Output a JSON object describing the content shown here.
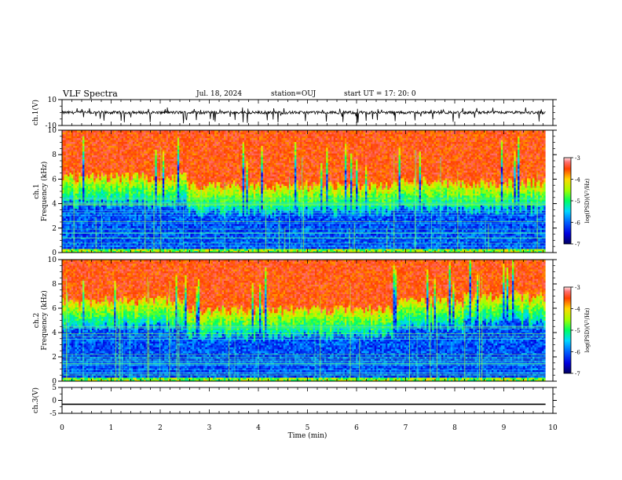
{
  "header": {
    "title": "VLF Spectra",
    "date": "Jul. 18, 2024",
    "station": "station=OUJ",
    "start_ut": "start UT =  17: 20: 0"
  },
  "chart_data": [
    {
      "type": "line",
      "panel": "ch1-waveform",
      "ylabel": "ch.1(V)",
      "ylim": [
        -10,
        10
      ],
      "yticks": [
        "10",
        "-10"
      ],
      "description_level": "noisy trace near 0 V with sparse negative spikes",
      "baseline": 0
    },
    {
      "type": "heatmap",
      "panel": "ch1-spectrogram",
      "ylabel_line1": "ch.1",
      "ylabel_line2": "Frequency (kHz)",
      "ylim": [
        0,
        10
      ],
      "yticks": [
        "0",
        "2",
        "4",
        "6",
        "8",
        "10"
      ],
      "colorbar": {
        "label": "log(PSD)(V²/Hz)",
        "range": [
          -7,
          -3
        ],
        "ticks": [
          "-3",
          "-4",
          "-5",
          "-6",
          "-7"
        ]
      },
      "low_band_top_khz": [
        4.0,
        3.3,
        3.6,
        3.5
      ],
      "segments_min": [
        0,
        2.55,
        6.85,
        8.2
      ]
    },
    {
      "type": "heatmap",
      "panel": "ch2-spectrogram",
      "ylabel_line1": "ch.2",
      "ylabel_line2": "Frequency (kHz)",
      "ylim": [
        0,
        10
      ],
      "yticks": [
        "0",
        "2",
        "4",
        "6",
        "8",
        "10"
      ],
      "colorbar": {
        "label": "log(PSD)(V²/Hz)",
        "range": [
          -7,
          -3
        ],
        "ticks": [
          "-3",
          "-4",
          "-5",
          "-6",
          "-7"
        ]
      },
      "low_band_top_khz": [
        4.4,
        3.7,
        4.4,
        4.8
      ],
      "segments_min": [
        0,
        2.55,
        6.85,
        8.2
      ]
    },
    {
      "type": "line",
      "panel": "ch3-waveform",
      "ylabel": "ch.3(V)",
      "ylim": [
        -5,
        5
      ],
      "yticks": [
        "5",
        "0",
        "-5"
      ],
      "baseline": -1.5
    }
  ],
  "xaxis": {
    "label": "Time (min)",
    "xlim": [
      0,
      10
    ],
    "ticks": [
      "0",
      "1",
      "2",
      "3",
      "4",
      "5",
      "6",
      "7",
      "8",
      "9",
      "10"
    ],
    "data_end_min": 9.85
  }
}
